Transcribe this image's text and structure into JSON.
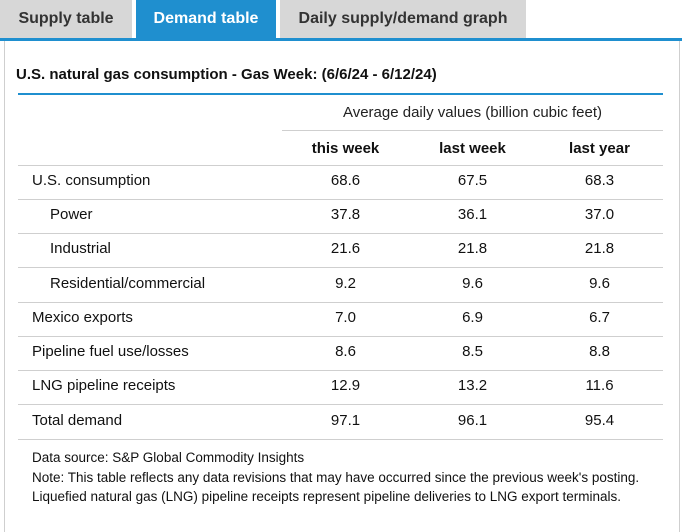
{
  "tabs": [
    {
      "label": "Supply table",
      "active": false
    },
    {
      "label": "Demand table",
      "active": true
    },
    {
      "label": "Daily supply/demand graph",
      "active": false
    }
  ],
  "colors": {
    "accent": "#1f8fcf",
    "inactive_tab": "#d7d7d7",
    "rule": "#cfcfcf"
  },
  "table": {
    "title": "U.S. natural gas consumption - Gas Week: (6/6/24 - 6/12/24)",
    "group_header": "Average daily values (billion cubic feet)",
    "columns": [
      "this week",
      "last week",
      "last year"
    ],
    "rows": [
      {
        "label": "U.S. consumption",
        "values": [
          "68.6",
          "67.5",
          "68.3"
        ]
      },
      {
        "label": "Power",
        "values": [
          "37.8",
          "36.1",
          "37.0"
        ]
      },
      {
        "label": "Industrial",
        "values": [
          "21.6",
          "21.8",
          "21.8"
        ]
      },
      {
        "label": "Residential/commercial",
        "values": [
          "9.2",
          "9.6",
          "9.6"
        ]
      },
      {
        "label": "Mexico exports",
        "values": [
          "7.0",
          "6.9",
          "6.7"
        ]
      },
      {
        "label": "Pipeline fuel use/losses",
        "values": [
          "8.6",
          "8.5",
          "8.8"
        ]
      },
      {
        "label": "LNG pipeline receipts",
        "values": [
          "12.9",
          "13.2",
          "11.6"
        ]
      },
      {
        "label": "Total demand",
        "values": [
          "97.1",
          "96.1",
          "95.4"
        ]
      }
    ]
  },
  "notes": {
    "source": "Data source: S&P Global Commodity Insights",
    "note": "Note: This table reflects any data revisions that may have occurred since the previous week's posting. Liquefied natural gas (LNG) pipeline receipts represent pipeline deliveries to LNG export terminals."
  }
}
